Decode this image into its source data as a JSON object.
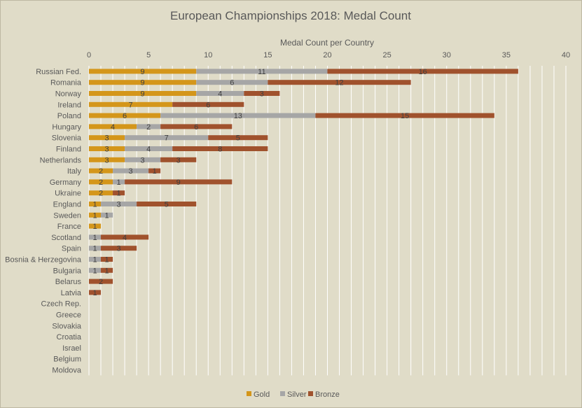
{
  "chart_data": {
    "type": "bar",
    "orientation": "horizontal",
    "stacked": true,
    "title": "European Championships 2018: Medal Count",
    "xlabel": "Medal Count per Country",
    "ylabel": "",
    "xlim": [
      0,
      40
    ],
    "x_ticks": [
      "0",
      "5",
      "10",
      "15",
      "20",
      "25",
      "30",
      "35",
      "40"
    ],
    "x_axis_position": "top",
    "grid": true,
    "legend_position": "bottom",
    "categories": [
      "Russian Fed.",
      "Romania",
      "Norway",
      "Ireland",
      "Poland",
      "Hungary",
      "Slovenia",
      "Finland",
      "Netherlands",
      "Italy",
      "Germany",
      "Ukraine",
      "England",
      "Sweden",
      "France",
      "Scotland",
      "Spain",
      "Bosnia & Herzegovina",
      "Bulgaria",
      "Belarus",
      "Latvia",
      "Czech Rep.",
      "Greece",
      "Slovakia",
      "Croatia",
      "Israel",
      "Belgium",
      "Moldova"
    ],
    "series": [
      {
        "name": "Gold",
        "color": "#d4961a",
        "values": [
          9,
          9,
          9,
          7,
          6,
          4,
          3,
          3,
          3,
          2,
          2,
          2,
          1,
          1,
          1,
          0,
          0,
          0,
          0,
          0,
          0,
          0,
          0,
          0,
          0,
          0,
          0,
          0
        ]
      },
      {
        "name": "Silver",
        "color": "#a6a6a6",
        "values": [
          11,
          6,
          4,
          0,
          13,
          2,
          7,
          4,
          3,
          3,
          1,
          0,
          3,
          1,
          0,
          1,
          1,
          1,
          1,
          0,
          0,
          0,
          0,
          0,
          0,
          0,
          0,
          0
        ]
      },
      {
        "name": "Bronze",
        "color": "#a0522d",
        "values": [
          16,
          12,
          3,
          6,
          15,
          6,
          5,
          8,
          3,
          1,
          9,
          1,
          5,
          0,
          0,
          4,
          3,
          1,
          1,
          2,
          1,
          0,
          0,
          0,
          0,
          0,
          0,
          0
        ]
      }
    ],
    "data_labels": [
      [
        "9",
        "11",
        "16"
      ],
      [
        "9",
        "6",
        "12"
      ],
      [
        "9",
        "4",
        "3"
      ],
      [
        "7",
        "",
        "6"
      ],
      [
        "6",
        "13",
        "15"
      ],
      [
        "4",
        "2",
        "6"
      ],
      [
        "3",
        "7",
        "5"
      ],
      [
        "3",
        "4",
        "8"
      ],
      [
        "3",
        "3",
        "3"
      ],
      [
        "2",
        "3",
        "1"
      ],
      [
        "2",
        "1",
        "9"
      ],
      [
        "2",
        "",
        "1"
      ],
      [
        "1",
        "3",
        "5"
      ],
      [
        "1",
        "1",
        ""
      ],
      [
        "1",
        "",
        ""
      ],
      [
        "",
        "1",
        "4"
      ],
      [
        "",
        "1",
        "3"
      ],
      [
        "",
        "1",
        "1"
      ],
      [
        "",
        "1",
        "1"
      ],
      [
        "",
        "",
        "2"
      ],
      [
        "",
        "",
        "1"
      ],
      [
        "",
        "",
        ""
      ],
      [
        "",
        "",
        ""
      ],
      [
        "",
        "",
        ""
      ],
      [
        "",
        "",
        ""
      ],
      [
        "",
        "",
        ""
      ],
      [
        "",
        "",
        ""
      ],
      [
        "",
        "",
        ""
      ]
    ]
  }
}
